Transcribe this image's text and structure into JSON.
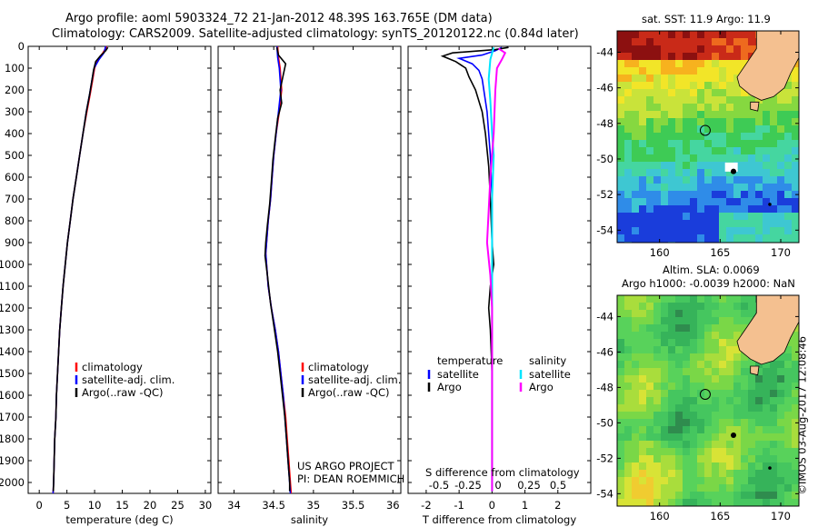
{
  "title_line1": "Argo profile: aoml 5903324_72 21-Jan-2012 48.39S 163.765E (DM data)",
  "title_line2": "Climatology: CARS2009. Satellite-adjusted climatology: synTS_20120122.nc (0.84d later)",
  "credit": "©IMOS 03-Aug-2017 12:08:46",
  "project_line1": "US ARGO PROJECT",
  "project_line2": "PI: DEAN ROEMMICH",
  "colors": {
    "climatology": "#ff0000",
    "satellite": "#0000ff",
    "argo": "#000000",
    "s_satellite": "#00e5ff",
    "s_argo": "#ff00ff",
    "land": "#f4c090"
  },
  "icons": [
    "profile-location-circle-icon"
  ],
  "chart_data": [
    {
      "type": "line",
      "xlabel": "temperature (deg C)",
      "ylabel": "",
      "xlim": [
        -2,
        31
      ],
      "ylim": [
        2050,
        0
      ],
      "xticks": [
        "0",
        "5",
        "10",
        "15",
        "20",
        "25",
        "30"
      ],
      "yticks": [
        "0",
        "100",
        "200",
        "300",
        "400",
        "500",
        "600",
        "700",
        "800",
        "900",
        "1000",
        "1100",
        "1200",
        "1300",
        "1400",
        "1500",
        "1600",
        "1700",
        "1800",
        "1900",
        "2000"
      ],
      "legend": [
        "climatology",
        "satellite-adj. clim.",
        "Argo(..raw -QC)"
      ],
      "series": [
        {
          "name": "climatology",
          "color": "#ff0000",
          "points": [
            [
              12.2,
              0
            ],
            [
              11.5,
              30
            ],
            [
              10.6,
              60
            ],
            [
              10.0,
              100
            ],
            [
              9.6,
              160
            ],
            [
              9.2,
              220
            ],
            [
              8.6,
              300
            ],
            [
              7.9,
              400
            ],
            [
              7.3,
              500
            ],
            [
              6.7,
              600
            ],
            [
              6.1,
              700
            ],
            [
              5.6,
              800
            ],
            [
              5.1,
              900
            ],
            [
              4.7,
              1000
            ],
            [
              4.3,
              1100
            ],
            [
              4.0,
              1200
            ],
            [
              3.7,
              1300
            ],
            [
              3.5,
              1400
            ],
            [
              3.3,
              1500
            ],
            [
              3.1,
              1600
            ],
            [
              3.0,
              1700
            ],
            [
              2.8,
              1800
            ],
            [
              2.7,
              1900
            ],
            [
              2.6,
              2000
            ],
            [
              2.5,
              2050
            ]
          ]
        },
        {
          "name": "satellite-adj. clim.",
          "color": "#0000ff",
          "points": [
            [
              12.0,
              0
            ],
            [
              11.7,
              30
            ],
            [
              10.8,
              60
            ],
            [
              9.9,
              100
            ],
            [
              9.5,
              160
            ],
            [
              9.1,
              220
            ],
            [
              8.5,
              300
            ],
            [
              7.9,
              400
            ],
            [
              7.3,
              500
            ],
            [
              6.7,
              600
            ],
            [
              6.1,
              700
            ],
            [
              5.6,
              800
            ],
            [
              5.1,
              900
            ],
            [
              4.7,
              1000
            ],
            [
              4.3,
              1100
            ],
            [
              4.0,
              1200
            ],
            [
              3.7,
              1300
            ],
            [
              3.5,
              1400
            ],
            [
              3.3,
              1500
            ],
            [
              3.1,
              1600
            ],
            [
              3.0,
              1700
            ],
            [
              2.8,
              1800
            ],
            [
              2.7,
              1900
            ],
            [
              2.6,
              2000
            ],
            [
              2.5,
              2050
            ]
          ]
        },
        {
          "name": "Argo(..raw -QC)",
          "color": "#000000",
          "points": [
            [
              12.4,
              5
            ],
            [
              12.0,
              20
            ],
            [
              11.0,
              45
            ],
            [
              10.2,
              70
            ],
            [
              9.8,
              110
            ],
            [
              9.5,
              160
            ],
            [
              9.1,
              220
            ],
            [
              8.5,
              300
            ],
            [
              7.9,
              400
            ],
            [
              7.3,
              500
            ],
            [
              6.7,
              600
            ],
            [
              6.1,
              700
            ],
            [
              5.6,
              800
            ],
            [
              5.1,
              900
            ],
            [
              4.7,
              1000
            ],
            [
              4.3,
              1100
            ],
            [
              4.0,
              1200
            ],
            [
              3.7,
              1300
            ],
            [
              3.5,
              1400
            ],
            [
              3.3,
              1500
            ],
            [
              3.1,
              1600
            ],
            [
              3.0,
              1700
            ],
            [
              2.8,
              1800
            ],
            [
              2.7,
              1900
            ],
            [
              2.6,
              2000
            ],
            [
              2.55,
              2040
            ]
          ]
        }
      ]
    },
    {
      "type": "line",
      "xlabel": "salinity",
      "ylabel": "",
      "xlim": [
        33.8,
        36.1
      ],
      "ylim": [
        2050,
        0
      ],
      "xticks": [
        "34",
        "34.5",
        "35",
        "35.5",
        "36"
      ],
      "legend": [
        "climatology",
        "satellite-adj. clim.",
        "Argo(..raw -QC)"
      ],
      "series": [
        {
          "name": "climatology",
          "color": "#ff0000",
          "points": [
            [
              34.55,
              0
            ],
            [
              34.56,
              50
            ],
            [
              34.58,
              100
            ],
            [
              34.6,
              200
            ],
            [
              34.57,
              300
            ],
            [
              34.53,
              400
            ],
            [
              34.5,
              500
            ],
            [
              34.48,
              600
            ],
            [
              34.46,
              700
            ],
            [
              34.43,
              800
            ],
            [
              34.41,
              900
            ],
            [
              34.4,
              950
            ],
            [
              34.43,
              1100
            ],
            [
              34.47,
              1200
            ],
            [
              34.52,
              1300
            ],
            [
              34.56,
              1400
            ],
            [
              34.59,
              1500
            ],
            [
              34.62,
              1600
            ],
            [
              34.65,
              1700
            ],
            [
              34.67,
              1800
            ],
            [
              34.69,
              1900
            ],
            [
              34.71,
              2000
            ],
            [
              34.72,
              2050
            ]
          ]
        },
        {
          "name": "satellite-adj. clim.",
          "color": "#0000ff",
          "points": [
            [
              34.54,
              0
            ],
            [
              34.55,
              50
            ],
            [
              34.57,
              100
            ],
            [
              34.59,
              200
            ],
            [
              34.56,
              300
            ],
            [
              34.53,
              400
            ],
            [
              34.5,
              500
            ],
            [
              34.48,
              600
            ],
            [
              34.46,
              700
            ],
            [
              34.43,
              800
            ],
            [
              34.41,
              900
            ],
            [
              34.4,
              950
            ],
            [
              34.43,
              1100
            ],
            [
              34.47,
              1200
            ],
            [
              34.52,
              1300
            ],
            [
              34.56,
              1400
            ],
            [
              34.59,
              1500
            ],
            [
              34.62,
              1600
            ],
            [
              34.64,
              1700
            ],
            [
              34.66,
              1800
            ],
            [
              34.68,
              1900
            ],
            [
              34.7,
              2000
            ],
            [
              34.71,
              2050
            ]
          ]
        },
        {
          "name": "Argo(..raw -QC)",
          "color": "#000000",
          "points": [
            [
              34.54,
              5
            ],
            [
              34.56,
              40
            ],
            [
              34.65,
              80
            ],
            [
              34.62,
              130
            ],
            [
              34.58,
              200
            ],
            [
              34.6,
              260
            ],
            [
              34.55,
              330
            ],
            [
              34.52,
              420
            ],
            [
              34.49,
              520
            ],
            [
              34.47,
              620
            ],
            [
              34.45,
              720
            ],
            [
              34.42,
              820
            ],
            [
              34.4,
              900
            ],
            [
              34.39,
              960
            ],
            [
              34.42,
              1050
            ],
            [
              34.46,
              1180
            ],
            [
              34.51,
              1300
            ],
            [
              34.55,
              1400
            ],
            [
              34.58,
              1500
            ],
            [
              34.61,
              1600
            ],
            [
              34.64,
              1700
            ],
            [
              34.66,
              1800
            ],
            [
              34.68,
              1900
            ],
            [
              34.7,
              2000
            ],
            [
              34.7,
              2040
            ]
          ]
        }
      ]
    },
    {
      "type": "line",
      "xlabel": "T difference from climatology",
      "ylabel": "",
      "xlim": [
        -2.55,
        3.0
      ],
      "ylim": [
        2050,
        0
      ],
      "xticks": [
        "-2",
        "-1",
        "0",
        "1",
        "2"
      ],
      "secondary_xlabel": "S difference from climatology",
      "secondary_xticks": [
        "-0.5",
        "-0.25",
        "0",
        "0.25",
        "0.5"
      ],
      "legend_temperature": "temperature",
      "legend_salinity": "salinity",
      "legend": [
        "satellite",
        "Argo",
        "satellite",
        "Argo"
      ],
      "series": [
        {
          "name": "satellite",
          "color": "#0000ff",
          "points": [
            [
              0.3,
              5
            ],
            [
              0.1,
              20
            ],
            [
              -0.3,
              40
            ],
            [
              -1.0,
              55
            ],
            [
              -0.6,
              80
            ],
            [
              -0.4,
              110
            ],
            [
              -0.3,
              150
            ],
            [
              -0.25,
              200
            ],
            [
              -0.15,
              300
            ],
            [
              -0.1,
              400
            ],
            [
              -0.05,
              500
            ],
            [
              0,
              700
            ],
            [
              0,
              1000
            ],
            [
              0,
              1300
            ],
            [
              0,
              1600
            ],
            [
              0,
              2040
            ]
          ]
        },
        {
          "name": "Argo",
          "color": "#000000",
          "points": [
            [
              0.5,
              5
            ],
            [
              0.1,
              15
            ],
            [
              -1.2,
              30
            ],
            [
              -1.5,
              45
            ],
            [
              -1.1,
              70
            ],
            [
              -0.8,
              100
            ],
            [
              -0.7,
              140
            ],
            [
              -0.5,
              200
            ],
            [
              -0.3,
              300
            ],
            [
              -0.2,
              400
            ],
            [
              -0.1,
              550
            ],
            [
              -0.05,
              700
            ],
            [
              0.0,
              900
            ],
            [
              0.05,
              1000
            ],
            [
              -0.05,
              1100
            ],
            [
              -0.1,
              1200
            ],
            [
              -0.05,
              1300
            ],
            [
              0,
              1500
            ],
            [
              0,
              2040
            ]
          ]
        },
        {
          "name": "satellite",
          "color": "#00e5ff",
          "points": [
            [
              0.05,
              5
            ],
            [
              -0.05,
              60
            ],
            [
              -0.1,
              150
            ],
            [
              -0.05,
              250
            ],
            [
              0,
              400
            ],
            [
              0.05,
              500
            ],
            [
              0.0,
              700
            ],
            [
              0.0,
              1000
            ],
            [
              0.0,
              1300
            ],
            [
              0.0,
              1600
            ],
            [
              0.0,
              1800
            ],
            [
              0.0,
              2040
            ]
          ]
        },
        {
          "name": "Argo",
          "color": "#ff00ff",
          "points": [
            [
              0.2,
              10
            ],
            [
              0.4,
              30
            ],
            [
              0.3,
              60
            ],
            [
              0.15,
              100
            ],
            [
              0.1,
              200
            ],
            [
              0.05,
              400
            ],
            [
              -0.05,
              600
            ],
            [
              -0.1,
              750
            ],
            [
              -0.15,
              900
            ],
            [
              -0.05,
              1050
            ],
            [
              0,
              1200
            ],
            [
              0,
              1400
            ],
            [
              0,
              1600
            ],
            [
              0,
              1800
            ],
            [
              0,
              2040
            ]
          ]
        }
      ]
    },
    {
      "type": "heatmap",
      "title": "sat. SST: 11.9  Argo: 11.9",
      "xticks": [
        "160",
        "165",
        "170"
      ],
      "yticks": [
        "-44",
        "-46",
        "-48",
        "-50",
        "-52",
        "-54"
      ],
      "xlim": [
        156.5,
        171.5
      ],
      "ylim": [
        -54.7,
        -42.8
      ],
      "marker": [
        163.77,
        -48.39
      ]
    },
    {
      "type": "heatmap",
      "title_line1": "Altim. SLA: 0.0069",
      "title_line2": "Argo h1000: -0.0039  h2000: NaN",
      "xticks": [
        "160",
        "165",
        "170"
      ],
      "yticks": [
        "-44",
        "-46",
        "-48",
        "-50",
        "-52",
        "-54"
      ],
      "xlim": [
        156.5,
        171.5
      ],
      "ylim": [
        -54.7,
        -42.8
      ],
      "marker": [
        163.77,
        -48.39
      ]
    }
  ]
}
